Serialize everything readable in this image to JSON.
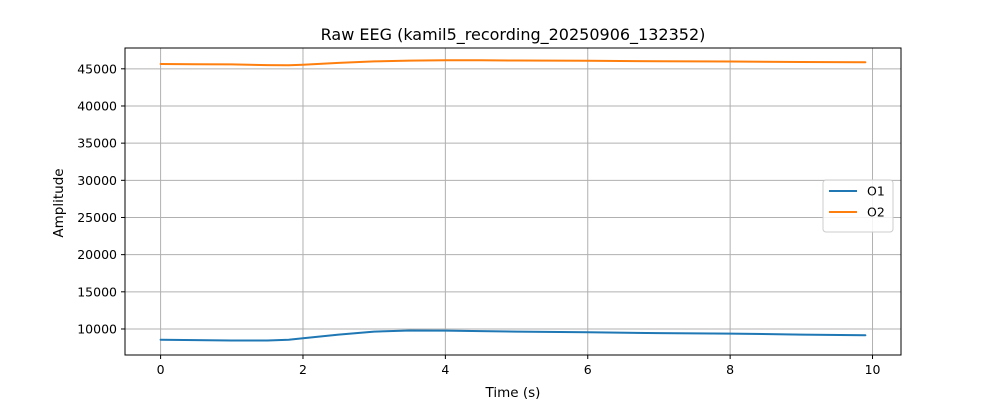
{
  "chart_data": {
    "type": "line",
    "title": "Raw EEG (kamil5_recording_20250906_132352)",
    "xlabel": "Time (s)",
    "ylabel": "Amplitude",
    "xlim": [
      -0.5,
      10.4
    ],
    "ylim": [
      6500,
      47800
    ],
    "xticks": [
      0,
      2,
      4,
      6,
      8,
      10
    ],
    "yticks": [
      10000,
      15000,
      20000,
      25000,
      30000,
      35000,
      40000,
      45000
    ],
    "grid": true,
    "legend_position": "center-right",
    "series": [
      {
        "name": "O1",
        "color": "#1f77b4",
        "x": [
          0,
          0.5,
          1.0,
          1.5,
          1.8,
          2.0,
          2.5,
          3.0,
          3.5,
          4.0,
          4.5,
          5.0,
          6.0,
          7.0,
          8.0,
          9.0,
          9.9
        ],
        "y": [
          8550,
          8500,
          8450,
          8450,
          8550,
          8750,
          9250,
          9650,
          9800,
          9780,
          9720,
          9650,
          9550,
          9450,
          9380,
          9250,
          9150
        ]
      },
      {
        "name": "O2",
        "color": "#ff7f0e",
        "x": [
          0,
          0.5,
          1.0,
          1.5,
          1.8,
          2.0,
          2.5,
          3.0,
          3.5,
          4.0,
          4.5,
          5.0,
          6.0,
          7.0,
          8.0,
          9.0,
          9.9
        ],
        "y": [
          45650,
          45620,
          45600,
          45500,
          45480,
          45550,
          45800,
          46000,
          46100,
          46150,
          46150,
          46120,
          46080,
          46020,
          45980,
          45920,
          45880
        ]
      }
    ]
  }
}
